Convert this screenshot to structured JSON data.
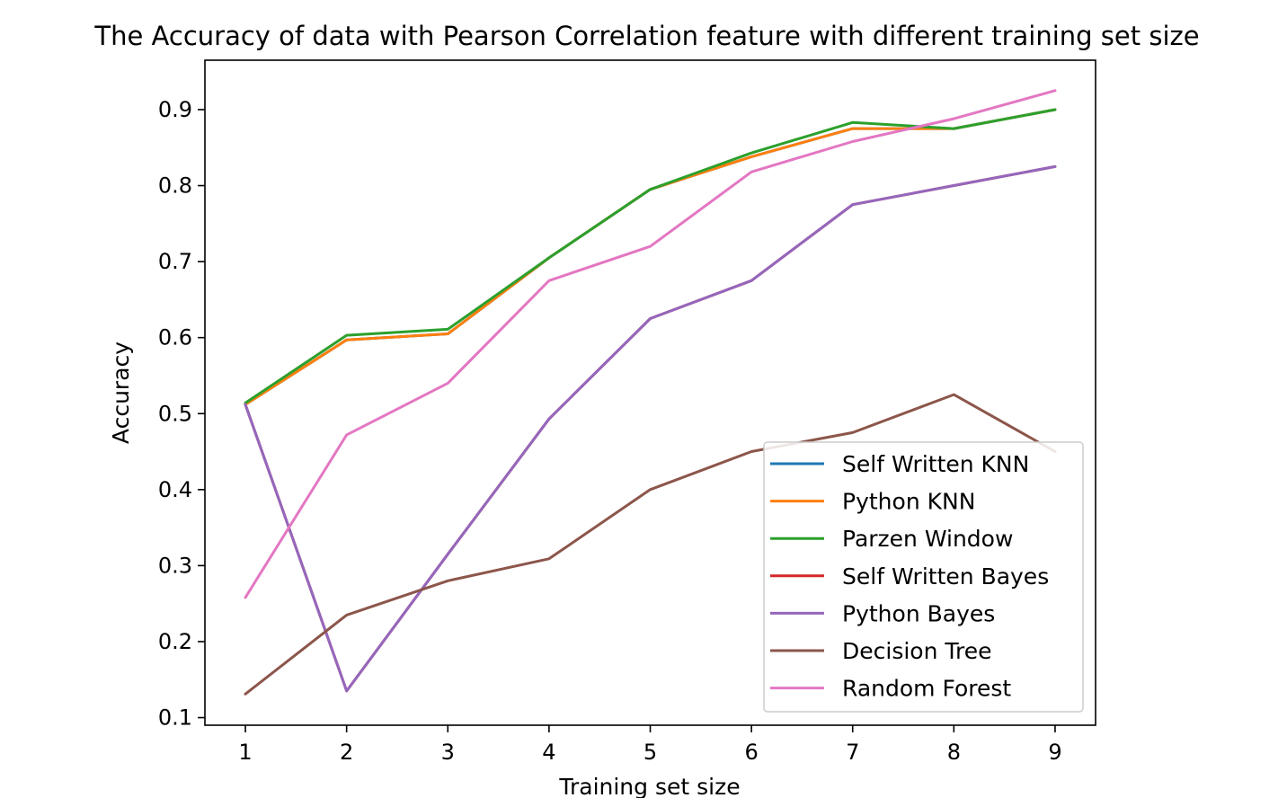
{
  "chart_data": {
    "type": "line",
    "title": "The Accuracy of data with Pearson Correlation feature with different training set size",
    "xlabel": "Training set size",
    "ylabel": "Accuracy",
    "x": [
      1,
      2,
      3,
      4,
      5,
      6,
      7,
      8,
      9
    ],
    "xlim": [
      0.6,
      9.4
    ],
    "ylim": [
      0.09,
      0.965
    ],
    "xticks": [
      "1",
      "2",
      "3",
      "4",
      "5",
      "6",
      "7",
      "8",
      "9"
    ],
    "yticks": [
      "0.1",
      "0.2",
      "0.3",
      "0.4",
      "0.5",
      "0.6",
      "0.7",
      "0.8",
      "0.9"
    ],
    "grid": false,
    "legend_position": "lower right",
    "series": [
      {
        "name": "Self Written KNN",
        "color": "#1f77b4",
        "values": [
          0.512,
          0.597,
          0.605,
          0.705,
          0.795,
          0.838,
          0.875,
          0.875,
          0.9
        ]
      },
      {
        "name": "Python KNN",
        "color": "#ff7f0e",
        "values": [
          0.512,
          0.597,
          0.605,
          0.705,
          0.795,
          0.838,
          0.875,
          0.875,
          0.9
        ]
      },
      {
        "name": "Parzen Window",
        "color": "#2ca02c",
        "values": [
          0.514,
          0.603,
          0.611,
          0.705,
          0.795,
          0.843,
          0.883,
          0.875,
          0.9
        ]
      },
      {
        "name": "Self Written Bayes",
        "color": "#d62728",
        "values": [
          0.512,
          0.135,
          0.315,
          0.493,
          0.625,
          0.675,
          0.775,
          0.8,
          0.825
        ]
      },
      {
        "name": "Python Bayes",
        "color": "#9467bd",
        "values": [
          0.512,
          0.135,
          0.315,
          0.493,
          0.625,
          0.675,
          0.775,
          0.8,
          0.825
        ]
      },
      {
        "name": "Decision Tree",
        "color": "#8c564b",
        "values": [
          0.131,
          0.235,
          0.28,
          0.309,
          0.4,
          0.45,
          0.475,
          0.525,
          0.45
        ]
      },
      {
        "name": "Random Forest",
        "color": "#e377c2",
        "values": [
          0.258,
          0.472,
          0.54,
          0.675,
          0.72,
          0.818,
          0.858,
          0.888,
          0.925
        ]
      }
    ]
  }
}
